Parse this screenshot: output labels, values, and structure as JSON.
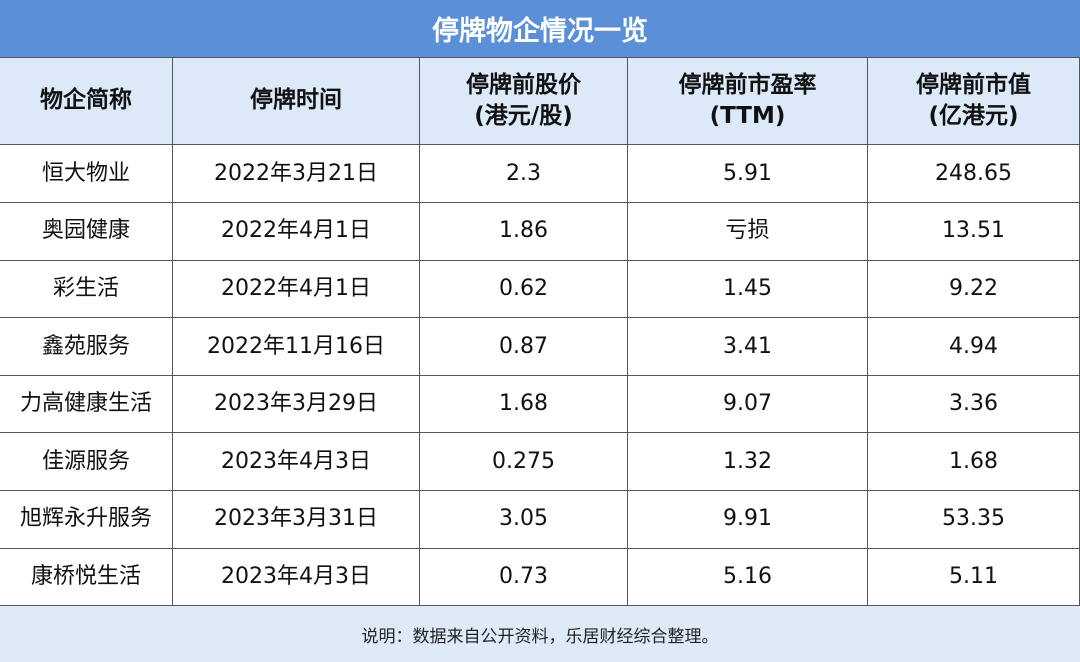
{
  "title": "停牌物企情况一览",
  "table": {
    "header": [
      [
        "物企简称"
      ],
      [
        "停牌时间"
      ],
      [
        "停牌前股价",
        "(港元/股)"
      ],
      [
        "停牌前市盈率",
        "(TTM)"
      ],
      [
        "停牌前市值",
        "(亿港元)"
      ]
    ],
    "rows": [
      [
        "恒大物业",
        "2022年3月21日",
        "2.3",
        "5.91",
        "248.65"
      ],
      [
        "奥园健康",
        "2022年4月1日",
        "1.86",
        "亏损",
        "13.51"
      ],
      [
        "彩生活",
        "2022年4月1日",
        "0.62",
        "1.45",
        "9.22"
      ],
      [
        "鑫苑服务",
        "2022年11月16日",
        "0.87",
        "3.41",
        "4.94"
      ],
      [
        "力高健康生活",
        "2023年3月29日",
        "1.68",
        "9.07",
        "3.36"
      ],
      [
        "佳源服务",
        "2023年4月3日",
        "0.275",
        "1.32",
        "1.68"
      ],
      [
        "旭辉永升服务",
        "2023年3月31日",
        "3.05",
        "9.91",
        "53.35"
      ],
      [
        "康桥悦生活",
        "2023年4月3日",
        "0.73",
        "5.16",
        "5.11"
      ]
    ]
  },
  "note": "说明：数据来自公开资料，乐居财经综合整理。"
}
